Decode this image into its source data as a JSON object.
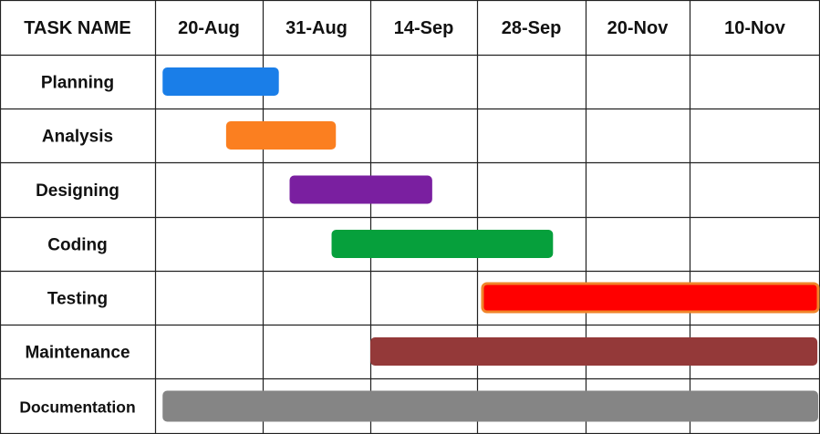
{
  "chart_data": {
    "type": "gantt",
    "header": {
      "task_label": "TASK NAME",
      "columns": [
        "20-Aug",
        "31-Aug",
        "14-Sep",
        "28-Sep",
        "20-Nov",
        "10-Nov"
      ]
    },
    "grid": true,
    "tasks": [
      {
        "name": "Planning",
        "start": 0.07,
        "end": 1.15,
        "color": "#1a7ee8"
      },
      {
        "name": "Analysis",
        "start": 0.66,
        "end": 1.68,
        "color": "#fb7f20"
      },
      {
        "name": "Designing",
        "start": 1.25,
        "end": 2.58,
        "color": "#7a1fa0"
      },
      {
        "name": "Coding",
        "start": 1.64,
        "end": 3.7,
        "color": "#06a03c"
      },
      {
        "name": "Testing",
        "start": 3.05,
        "end": 6.0,
        "color": "#ff0000",
        "border": "#f0852a"
      },
      {
        "name": "Maintenance",
        "start": 2.0,
        "end": 5.98,
        "color": "#943939"
      },
      {
        "name": "Documentation",
        "start": 0.07,
        "end": 6.0,
        "color": "#858585"
      }
    ]
  }
}
